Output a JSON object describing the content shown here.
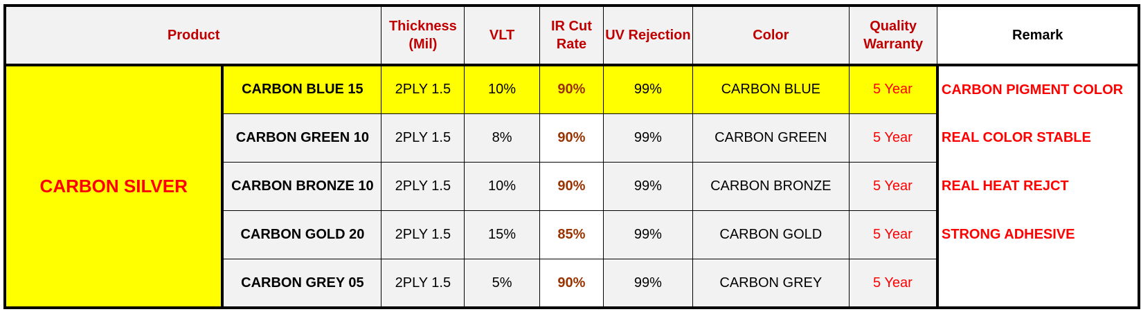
{
  "headers": {
    "product": "Product",
    "thickness": "Thickness (Mil)",
    "vlt": "VLT",
    "ir_cut": "IR Cut Rate",
    "uv": "UV Rejection",
    "color": "Color",
    "warranty": "Quality Warranty",
    "remark": "Remark"
  },
  "group_name": "CARBON SILVER",
  "rows": [
    {
      "name": "CARBON BLUE 15",
      "thickness": "2PLY 1.5",
      "vlt": "10%",
      "ir": "90%",
      "uv": "99%",
      "color": "CARBON BLUE",
      "warranty": "5 Year",
      "remark": "CARBON PIGMENT COLOR"
    },
    {
      "name": "CARBON GREEN 10",
      "thickness": "2PLY 1.5",
      "vlt": "8%",
      "ir": "90%",
      "uv": "99%",
      "color": "CARBON GREEN",
      "warranty": "5 Year",
      "remark": "REAL COLOR STABLE"
    },
    {
      "name": "CARBON BRONZE 10",
      "thickness": "2PLY 1.5",
      "vlt": "10%",
      "ir": "90%",
      "uv": "99%",
      "color": "CARBON BRONZE",
      "warranty": "5 Year",
      "remark": "REAL HEAT REJCT"
    },
    {
      "name": "CARBON GOLD 20",
      "thickness": "2PLY 1.5",
      "vlt": "15%",
      "ir": "85%",
      "uv": "99%",
      "color": "CARBON GOLD",
      "warranty": "5 Year",
      "remark": "STRONG ADHESIVE"
    },
    {
      "name": "CARBON GREY 05",
      "thickness": "2PLY 1.5",
      "vlt": "5%",
      "ir": "90%",
      "uv": "99%",
      "color": "CARBON GREY",
      "warranty": "5 Year",
      "remark": ""
    }
  ],
  "colors": {
    "header_text": "#c00000",
    "group_text": "#ff0000",
    "highlight": "#ffff00",
    "ir_text": "#993300",
    "cell_bg": "#f2f2f2"
  }
}
